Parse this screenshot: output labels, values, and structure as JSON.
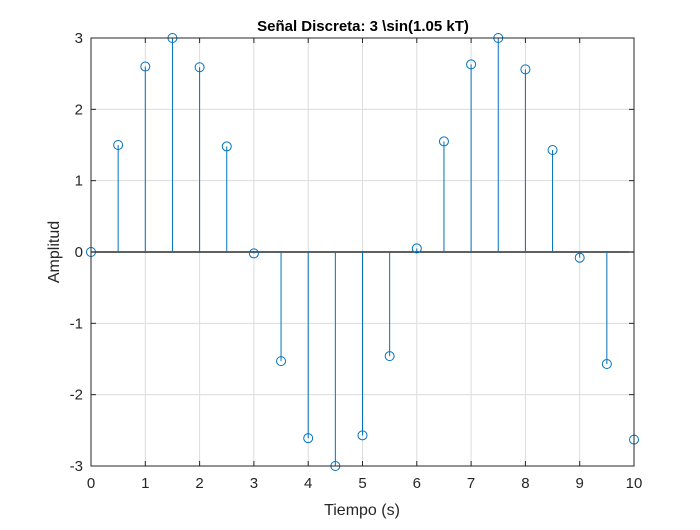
{
  "chart_data": {
    "type": "stem",
    "title": "Señal Discreta: 3 \\sin(1.05 kT)",
    "xlabel": "Tiempo (s)",
    "ylabel": "Amplitud",
    "xlim": [
      0,
      10
    ],
    "ylim": [
      -3,
      3
    ],
    "xticks": [
      0,
      1,
      2,
      3,
      4,
      5,
      6,
      7,
      8,
      9,
      10
    ],
    "yticks": [
      -3,
      -2,
      -1,
      0,
      1,
      2,
      3
    ],
    "grid": true,
    "baseline": 0,
    "marker": "circle",
    "color": "#0072bd",
    "x": [
      0,
      0.5,
      1,
      1.5,
      2,
      2.5,
      3,
      3.5,
      4,
      4.5,
      5,
      5.5,
      6,
      6.5,
      7,
      7.5,
      8,
      8.5,
      9,
      9.5,
      10
    ],
    "y": [
      0,
      1.5,
      2.6,
      3.0,
      2.59,
      1.48,
      -0.02,
      -1.53,
      -2.61,
      -3.0,
      -2.57,
      -1.46,
      0.05,
      1.55,
      2.63,
      3.0,
      2.56,
      1.43,
      -0.08,
      -1.57,
      -2.63
    ]
  }
}
